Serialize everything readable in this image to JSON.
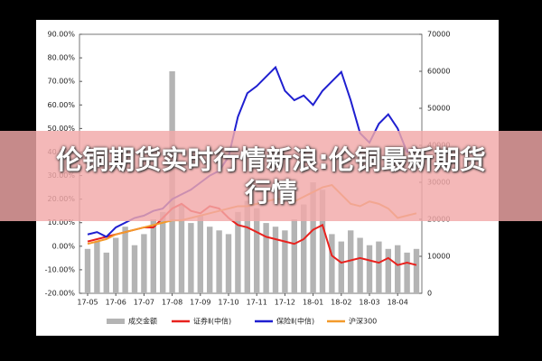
{
  "chart_data": {
    "type": "bar-line",
    "categories": [
      "17-05",
      null,
      null,
      "17-06",
      null,
      null,
      "17-07",
      null,
      null,
      "17-08",
      null,
      null,
      "17-09",
      null,
      null,
      "17-10",
      null,
      null,
      "17-11",
      null,
      null,
      "17-12",
      null,
      null,
      "18-01",
      null,
      null,
      "18-02",
      null,
      null,
      "18-03",
      null,
      null,
      "18-04",
      null,
      null
    ],
    "series": [
      {
        "name": "成交金额",
        "type": "bar",
        "axis": "y2",
        "color": "#b4b4b4",
        "values": [
          12000,
          14000,
          11000,
          15000,
          18000,
          13000,
          16000,
          20000,
          22000,
          60000,
          24000,
          19000,
          21000,
          18000,
          17000,
          16000,
          22000,
          25000,
          23000,
          19000,
          18000,
          17000,
          20000,
          24000,
          30000,
          28000,
          16000,
          14000,
          17000,
          15000,
          13000,
          14000,
          12000,
          13000,
          11000,
          12000
        ]
      },
      {
        "name": "证券Ⅱ(中信)",
        "type": "line",
        "color": "#e8221e",
        "values": [
          2,
          3,
          4,
          5,
          6,
          7,
          8,
          8,
          12,
          16,
          18,
          15,
          14,
          17,
          16,
          12,
          9,
          8,
          6,
          4,
          3,
          2,
          1,
          3,
          7,
          9,
          -4,
          -7,
          -6,
          -5,
          -6,
          -7,
          -5,
          -8,
          -7,
          -8
        ]
      },
      {
        "name": "保险Ⅱ(中信)",
        "type": "line",
        "color": "#1f1fd0",
        "values": [
          5,
          6,
          4,
          8,
          10,
          12,
          13,
          15,
          16,
          20,
          22,
          24,
          27,
          30,
          32,
          38,
          55,
          65,
          68,
          72,
          76,
          66,
          62,
          64,
          60,
          66,
          70,
          74,
          62,
          48,
          44,
          52,
          56,
          50,
          40,
          42
        ]
      },
      {
        "name": "沪深300",
        "type": "line",
        "color": "#f39a2b",
        "values": [
          1,
          2,
          3,
          5,
          6,
          7,
          8,
          9,
          10,
          11,
          11,
          12,
          13,
          14,
          15,
          16,
          17,
          17,
          18,
          19,
          20,
          20,
          19,
          21,
          23,
          25,
          26,
          22,
          18,
          17,
          19,
          18,
          16,
          12,
          13,
          14
        ]
      }
    ],
    "ylim": [
      -20,
      90
    ],
    "yticks": [
      {
        "value": -20,
        "label": "-20.00%"
      },
      {
        "value": -10,
        "label": "-10.00%"
      },
      {
        "value": 0,
        "label": "0.00%"
      },
      {
        "value": 10,
        "label": "10.00%"
      },
      {
        "value": 20,
        "label": "20.00%"
      },
      {
        "value": 30,
        "label": "30.00%"
      },
      {
        "value": 40,
        "label": "40.00%"
      },
      {
        "value": 50,
        "label": "50.00%"
      },
      {
        "value": 60,
        "label": "60.00%"
      },
      {
        "value": 70,
        "label": "70.00%"
      },
      {
        "value": 80,
        "label": "80.00%"
      },
      {
        "value": 90,
        "label": "90.00%"
      }
    ],
    "y2lim": [
      0,
      70000
    ],
    "y2ticks": [
      0,
      10000,
      20000,
      30000,
      40000,
      50000,
      60000,
      70000
    ]
  },
  "banner": "伦铜期货实时行情新浪:伦铜最新期货行情"
}
